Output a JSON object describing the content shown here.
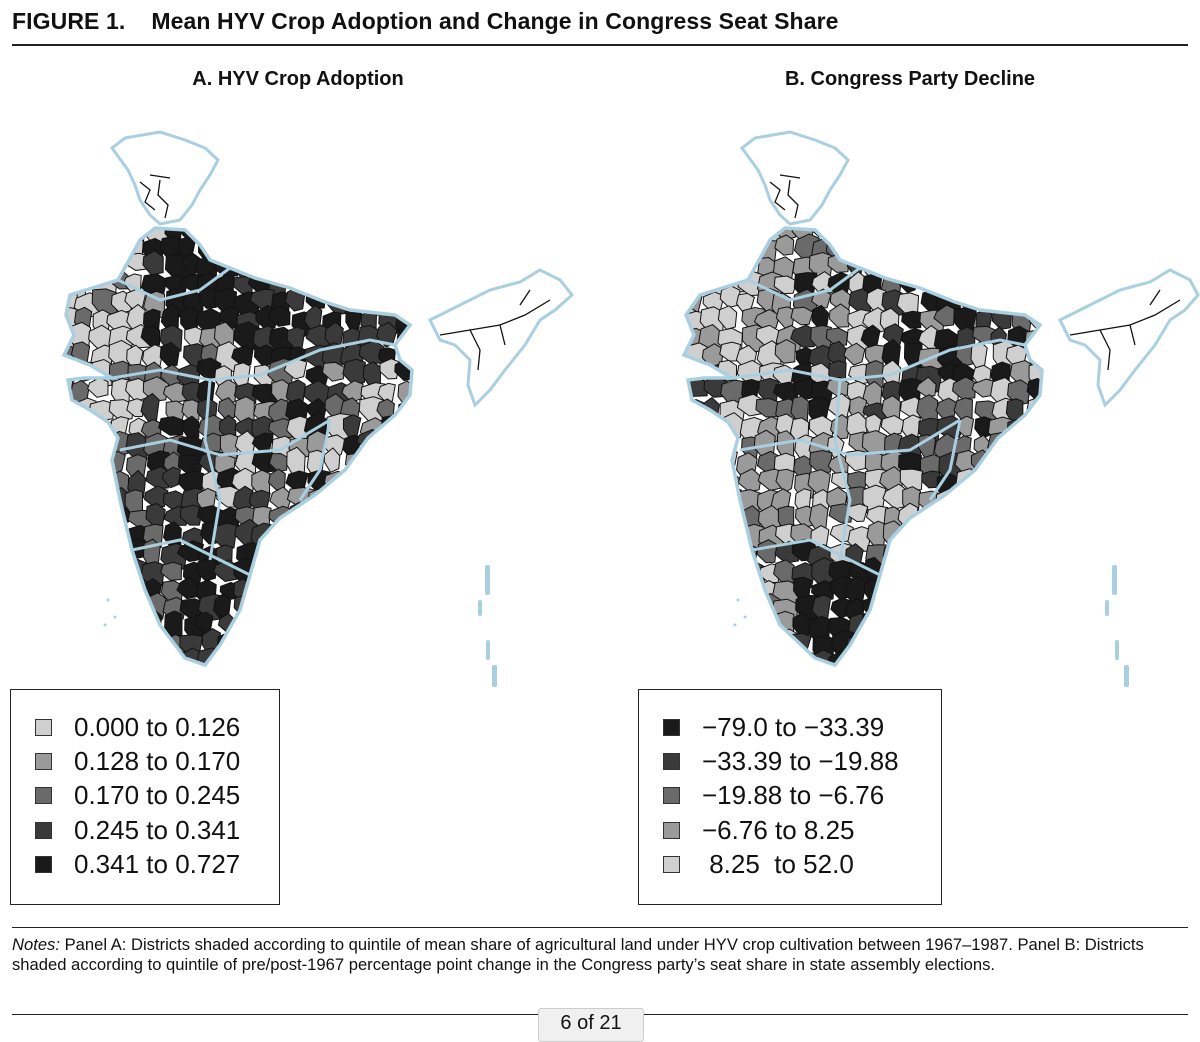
{
  "figure": {
    "label": "FIGURE 1.",
    "title": "Mean HYV Crop Adoption and Change in Congress Seat Share"
  },
  "panels": [
    {
      "id": "A",
      "title": "A. HYV Crop Adoption",
      "legend": [
        {
          "label": "0.000 to 0.126",
          "color": "#cfcfcf"
        },
        {
          "label": "0.128 to 0.170",
          "color": "#9a9a9a"
        },
        {
          "label": "0.170 to 0.245",
          "color": "#6a6a6a"
        },
        {
          "label": "0.245 to 0.341",
          "color": "#3a3a3a"
        },
        {
          "label": "0.341 to 0.727",
          "color": "#1a1a1a"
        }
      ]
    },
    {
      "id": "B",
      "title": "B. Congress Party Decline",
      "legend": [
        {
          "label": "−79.0 to −33.39",
          "color": "#1a1a1a"
        },
        {
          "label": "−33.39 to −19.88",
          "color": "#3a3a3a"
        },
        {
          "label": "−19.88 to −6.76",
          "color": "#6a6a6a"
        },
        {
          "label": "−6.76 to 8.25",
          "color": "#9a9a9a"
        },
        {
          "label": " 8.25  to 52.0",
          "color": "#cfcfcf"
        }
      ]
    }
  ],
  "notes": {
    "lead": "Notes:",
    "text": " Panel A: Districts shaded according to quintile of mean share of agricultural land under HYV crop cultivation between 1967–1987. Panel B: Districts shaded according to quintile of pre/post-1967 percentage point change in the Congress party’s seat share in state assembly elections."
  },
  "page": {
    "indicator": "6 of 21"
  },
  "colors": {
    "state_border": "#a9cfe0",
    "district_border": "#111111"
  }
}
